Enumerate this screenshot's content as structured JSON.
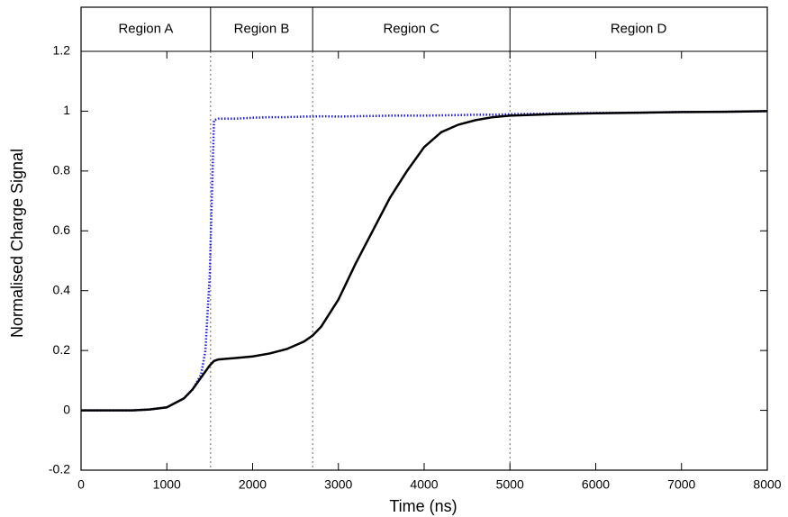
{
  "chart_data": {
    "type": "line",
    "x_label": "Time (ns)",
    "y_label": "Normalised Charge Signal",
    "regions": [
      {
        "label": "Region A",
        "start": 0,
        "end": 1510
      },
      {
        "label": "Region B",
        "start": 1510,
        "end": 2700
      },
      {
        "label": "Region C",
        "start": 2700,
        "end": 5000
      },
      {
        "label": "Region D",
        "start": 5000,
        "end": 8000
      }
    ],
    "x": [
      0,
      200,
      400,
      600,
      800,
      1000,
      1200,
      1300,
      1400,
      1450,
      1500,
      1550,
      1600,
      1800,
      2000,
      2200,
      2400,
      2600,
      2700,
      2800,
      3000,
      3200,
      3400,
      3600,
      3800,
      4000,
      4200,
      4400,
      4600,
      4800,
      5000,
      5500,
      6000,
      6500,
      7000,
      7500,
      8000
    ],
    "series": [
      {
        "color": "#1a1aff",
        "dash": "dotted",
        "values": [
          0,
          0,
          0,
          0,
          0.003,
          0.01,
          0.04,
          0.07,
          0.12,
          0.2,
          0.45,
          0.97,
          0.975,
          0.975,
          0.978,
          0.98,
          0.98,
          0.982,
          0.982,
          0.983,
          0.982,
          0.983,
          0.984,
          0.985,
          0.985,
          0.985,
          0.986,
          0.987,
          0.988,
          0.988,
          0.99,
          0.992,
          0.994,
          0.995,
          0.997,
          0.998,
          1.0
        ]
      },
      {
        "color": "#000000",
        "dash": "solid",
        "values": [
          0,
          0,
          0,
          0,
          0.003,
          0.01,
          0.04,
          0.07,
          0.11,
          0.13,
          0.15,
          0.165,
          0.17,
          0.175,
          0.18,
          0.19,
          0.205,
          0.23,
          0.25,
          0.28,
          0.37,
          0.49,
          0.6,
          0.71,
          0.8,
          0.88,
          0.93,
          0.955,
          0.97,
          0.98,
          0.985,
          0.99,
          0.993,
          0.995,
          0.997,
          0.998,
          1.0
        ]
      }
    ],
    "xlim": [
      0,
      8000
    ],
    "xticks": [
      0,
      1000,
      2000,
      3000,
      4000,
      5000,
      6000,
      7000,
      8000
    ],
    "ylim": [
      -0.2,
      1.2
    ],
    "yticks": [
      -0.2,
      0,
      0.2,
      0.4,
      0.6,
      0.8,
      1,
      1.2
    ]
  }
}
